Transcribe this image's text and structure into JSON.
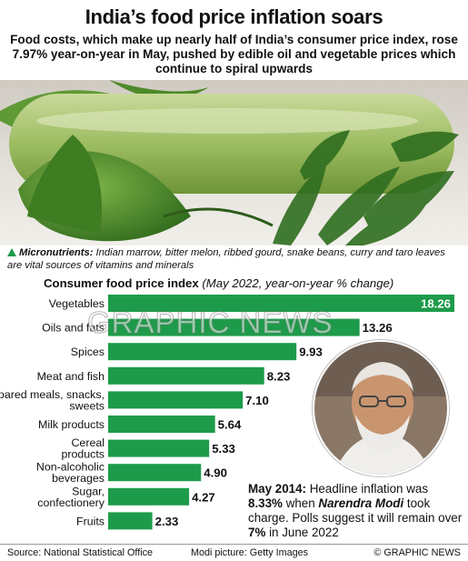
{
  "header": {
    "title": "India’s food price inflation soars",
    "subtitle": "Food costs, which make up nearly half of India’s consumer price index, rose 7.97% year-on-year in May, pushed by edible oil and vegetable prices which continue to spiral upwards"
  },
  "caption": {
    "lead": "Micronutrients:",
    "text": " Indian marrow, bitter melon, ribbed gourd, snake beans, curry and taro leaves are vital sources of vitamins and minerals"
  },
  "chart_data": {
    "type": "bar",
    "orientation": "horizontal",
    "title": "Consumer food price index",
    "subtitle": "(May 2022, year-on-year % change)",
    "categories": [
      "Vegetables",
      "Oils and fats",
      "Spices",
      "Meat and fish",
      "Prepared meals, snacks, sweets",
      "Milk products",
      "Cereal products",
      "Non-alcoholic beverages",
      "Sugar, confectionery",
      "Fruits"
    ],
    "values": [
      18.26,
      13.26,
      9.93,
      8.23,
      7.1,
      5.64,
      5.33,
      4.9,
      4.27,
      2.33
    ],
    "labels": [
      "18.26",
      "13.26",
      "9.93",
      "8.23",
      "7.10",
      "5.64",
      "5.33",
      "4.90",
      "4.27",
      "2.33"
    ],
    "xlim": [
      0,
      18.26
    ],
    "grid": false,
    "legend": "none",
    "colors": {
      "bar": "#1e9b4a",
      "bar_highlight": "#1e9b4a"
    }
  },
  "note": {
    "lead": "May 2014:",
    "text1": " Headline inflation was ",
    "value1": "8.33%",
    "text2": " when ",
    "name": "Narendra Modi",
    "text3": " took charge. Polls suggest it will remain over ",
    "value2": "7%",
    "text4": " in June 2022"
  },
  "watermark": "GRAPHIC NEWS",
  "footer": {
    "source": "Source: National Statistical Office",
    "picture": "Modi picture: Getty Images",
    "credit": "© GRAPHIC NEWS"
  }
}
